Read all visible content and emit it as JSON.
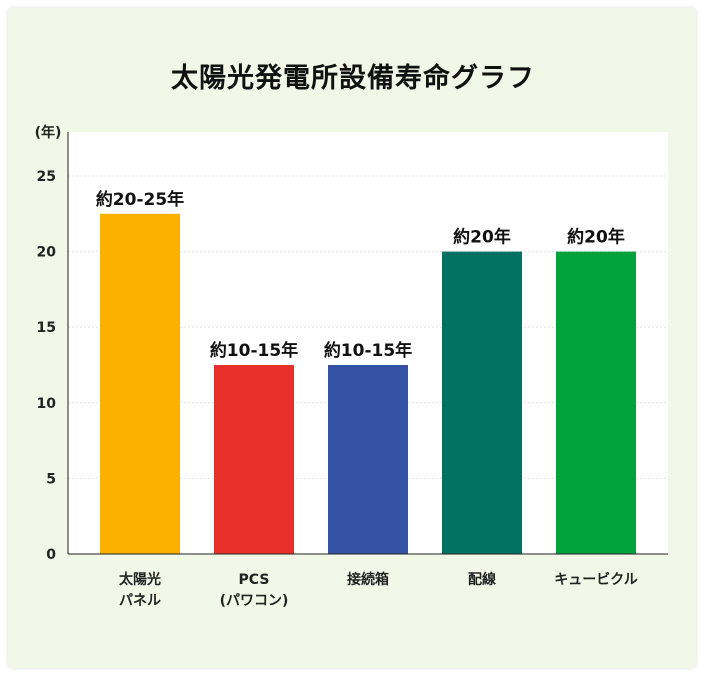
{
  "chart_data": {
    "type": "bar",
    "title": "太陽光発電所設備寿命グラフ",
    "y_unit": "(年)",
    "ylim": [
      0,
      25
    ],
    "yticks": [
      0,
      5,
      10,
      15,
      20,
      25
    ],
    "grid": true,
    "categories": [
      [
        "太陽光",
        "パネル"
      ],
      [
        "PCS",
        "(パワコン)"
      ],
      [
        "接続箱"
      ],
      [
        "配線"
      ],
      [
        "キュービクル"
      ]
    ],
    "values": [
      22.5,
      12.5,
      12.5,
      20,
      20
    ],
    "data_labels": [
      "約20-25年",
      "約10-15年",
      "約10-15年",
      "約20年",
      "約20年"
    ],
    "colors": [
      "#fcb101",
      "#e8302a",
      "#3652a4",
      "#007264",
      "#00a23b"
    ]
  }
}
